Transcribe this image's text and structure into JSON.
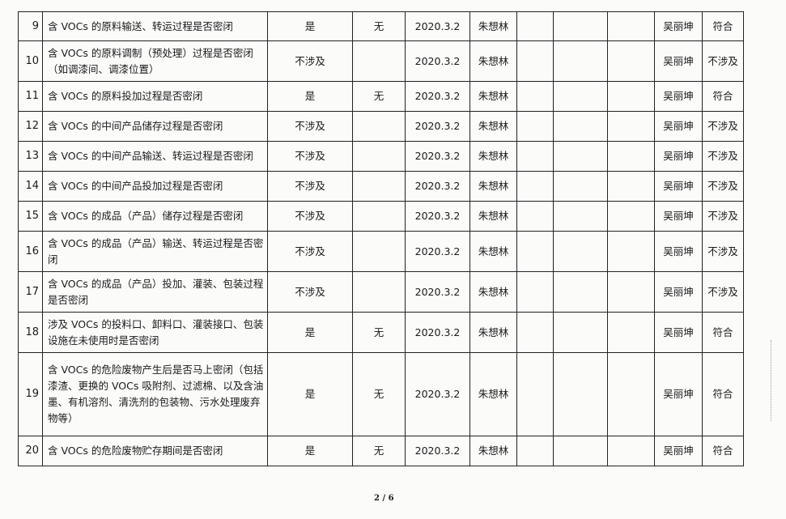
{
  "rows": [
    {
      "no": "9",
      "item": "含 VOCs 的原料输送、转运过程是否密闭",
      "involved": "是",
      "issue": "无",
      "date": "2020.3.2",
      "inspector": "朱想林",
      "c1": "",
      "c2": "",
      "c3": "",
      "reviewer": "吴丽坤",
      "result": "符合"
    },
    {
      "no": "10",
      "item": "含 VOCs 的原料调制（预处理）过程是否密闭（如调漆间、调漆位置）",
      "involved": "不涉及",
      "issue": "",
      "date": "2020.3.2",
      "inspector": "朱想林",
      "c1": "",
      "c2": "",
      "c3": "",
      "reviewer": "吴丽坤",
      "result": "不涉及"
    },
    {
      "no": "11",
      "item": "含 VOCs 的原料投加过程是否密闭",
      "involved": "是",
      "issue": "无",
      "date": "2020.3.2",
      "inspector": "朱想林",
      "c1": "",
      "c2": "",
      "c3": "",
      "reviewer": "吴丽坤",
      "result": "符合"
    },
    {
      "no": "12",
      "item": "含 VOCs 的中间产品储存过程是否密闭",
      "involved": "不涉及",
      "issue": "",
      "date": "2020.3.2",
      "inspector": "朱想林",
      "c1": "",
      "c2": "",
      "c3": "",
      "reviewer": "吴丽坤",
      "result": "不涉及"
    },
    {
      "no": "13",
      "item": "含 VOCs 的中间产品输送、转运过程是否密闭",
      "involved": "不涉及",
      "issue": "",
      "date": "2020.3.2",
      "inspector": "朱想林",
      "c1": "",
      "c2": "",
      "c3": "",
      "reviewer": "吴丽坤",
      "result": "不涉及"
    },
    {
      "no": "14",
      "item": "含 VOCs 的中间产品投加过程是否密闭",
      "involved": "不涉及",
      "issue": "",
      "date": "2020.3.2",
      "inspector": "朱想林",
      "c1": "",
      "c2": "",
      "c3": "",
      "reviewer": "吴丽坤",
      "result": "不涉及"
    },
    {
      "no": "15",
      "item": "含 VOCs 的成品（产品）储存过程是否密闭",
      "involved": "不涉及",
      "issue": "",
      "date": "2020.3.2",
      "inspector": "朱想林",
      "c1": "",
      "c2": "",
      "c3": "",
      "reviewer": "吴丽坤",
      "result": "不涉及"
    },
    {
      "no": "16",
      "item": "含 VOCs 的成品（产品）输送、转运过程是否密闭",
      "involved": "不涉及",
      "issue": "",
      "date": "2020.3.2",
      "inspector": "朱想林",
      "c1": "",
      "c2": "",
      "c3": "",
      "reviewer": "吴丽坤",
      "result": "不涉及"
    },
    {
      "no": "17",
      "item": "含 VOCs 的成品（产品）投加、灌装、包装过程是否密闭",
      "involved": "不涉及",
      "issue": "",
      "date": "2020.3.2",
      "inspector": "朱想林",
      "c1": "",
      "c2": "",
      "c3": "",
      "reviewer": "吴丽坤",
      "result": "不涉及"
    },
    {
      "no": "18",
      "item": "涉及 VOCs 的投料口、卸料口、灌装接口、包装设施在未使用时是否密闭",
      "involved": "是",
      "issue": "无",
      "date": "2020.3.2",
      "inspector": "朱想林",
      "c1": "",
      "c2": "",
      "c3": "",
      "reviewer": "吴丽坤",
      "result": "符合"
    },
    {
      "no": "19",
      "item": "含 VOCs 的危险废物产生后是否马上密闭（包括漆渣、更换的 VOCs 吸附剂、过滤棉、以及含油墨、有机溶剂、清洗剂的包装物、污水处理废弃物等）",
      "involved": "是",
      "issue": "无",
      "date": "2020.3.2",
      "inspector": "朱想林",
      "c1": "",
      "c2": "",
      "c3": "",
      "reviewer": "吴丽坤",
      "result": "符合"
    },
    {
      "no": "20",
      "item": "含 VOCs 的危险废物贮存期间是否密闭",
      "involved": "是",
      "issue": "无",
      "date": "2020.3.2",
      "inspector": "朱想林",
      "c1": "",
      "c2": "",
      "c3": "",
      "reviewer": "吴丽坤",
      "result": "符合"
    }
  ],
  "footer": {
    "page": "2 / 6"
  }
}
